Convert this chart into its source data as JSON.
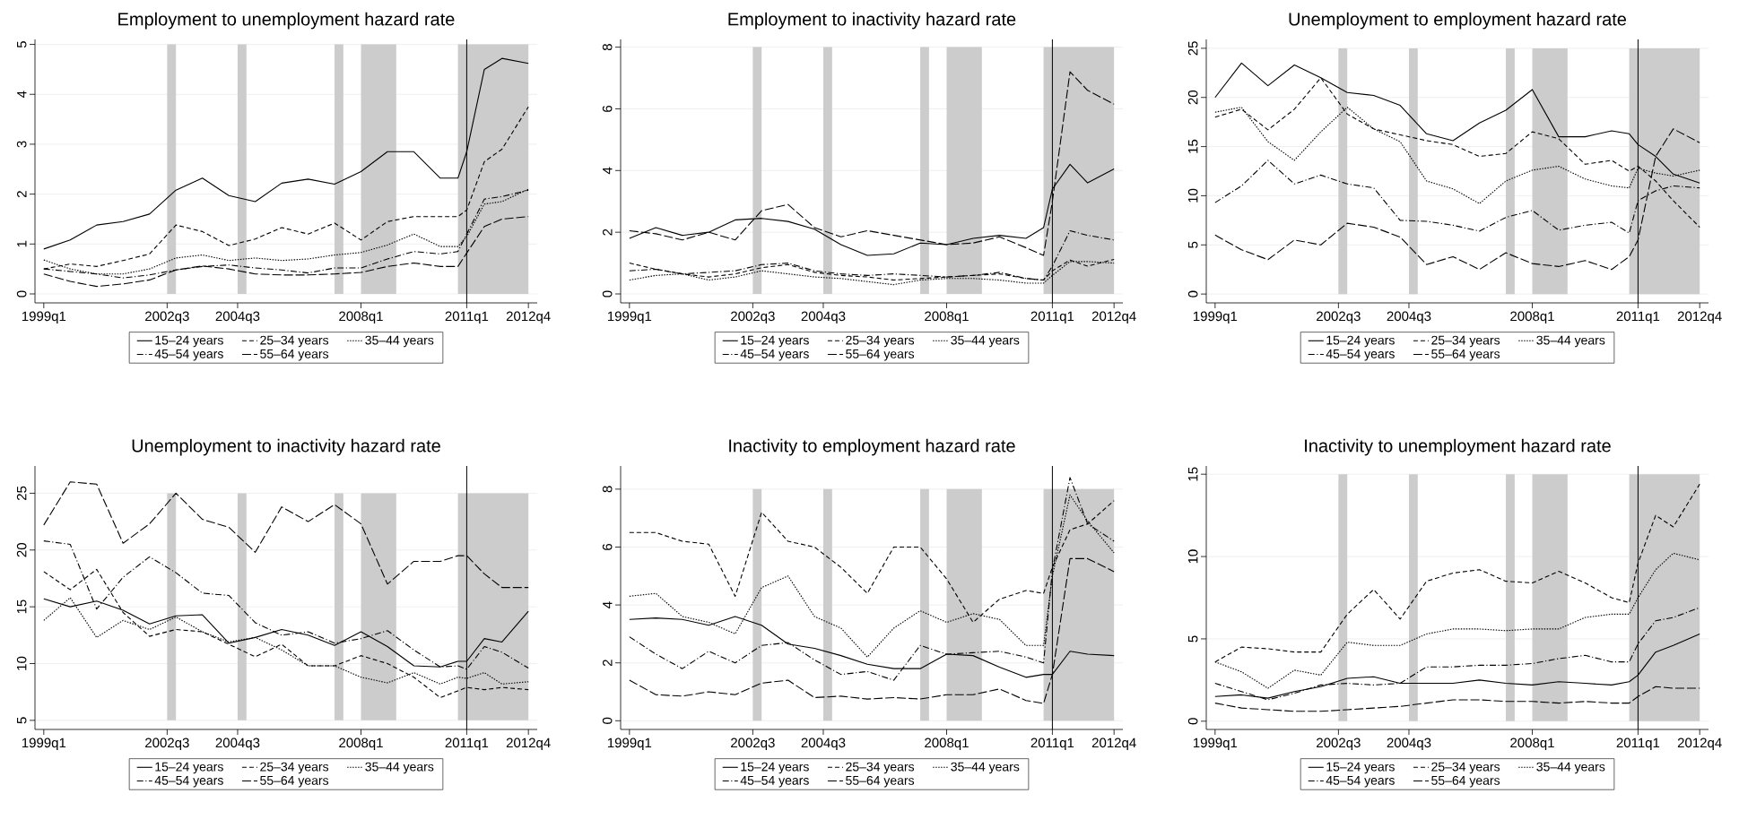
{
  "chart_data": [
    {
      "type": "line",
      "title": "Employment to unemployment hazard rate",
      "x": [
        "1999-01",
        "1999-10",
        "2000-07",
        "2001-04",
        "2002-01",
        "2002-10",
        "2003-07",
        "2004-04",
        "2005-01",
        "2005-10",
        "2006-07",
        "2007-04",
        "2008-01",
        "2008-10",
        "2009-07",
        "2010-04",
        "2010-10",
        "2011-01",
        "2011-07",
        "2012-01",
        "2012-10"
      ],
      "xlim": [
        "1998-10",
        "2013-01"
      ],
      "xticks": [
        {
          "value": "1999-01",
          "label": "1999q1"
        },
        {
          "value": "2002-07",
          "label": "2002q3"
        },
        {
          "value": "2004-07",
          "label": "2004q3"
        },
        {
          "value": "2008-01",
          "label": "2008q1"
        },
        {
          "value": "2011-01",
          "label": "2011q1"
        },
        {
          "value": "2012-10",
          "label": "2012q4"
        }
      ],
      "ylim": [
        -0.18,
        5.1
      ],
      "yticks": [
        0,
        1,
        2,
        3,
        4,
        5
      ],
      "grid": "y",
      "legend": "bottom",
      "bands": [
        {
          "axis": "x",
          "from": "2002-07",
          "to": "2002-10",
          "color": "#cccccc"
        },
        {
          "axis": "x",
          "from": "2004-07",
          "to": "2004-10",
          "color": "#cccccc"
        },
        {
          "axis": "x",
          "from": "2007-04",
          "to": "2007-07",
          "color": "#cccccc"
        },
        {
          "axis": "x",
          "from": "2008-01",
          "to": "2009-01",
          "color": "#cccccc"
        },
        {
          "axis": "x",
          "from": "2010-10",
          "to": "2012-10",
          "color": "#cccccc"
        }
      ],
      "ref_lines": [
        {
          "axis": "x",
          "value": "2011-01",
          "color": "#000000"
        }
      ],
      "series": [
        {
          "name": "15–24 years",
          "color": "#000000",
          "line_style": "solid",
          "values": [
            0.9,
            1.08,
            1.38,
            1.45,
            1.6,
            2.08,
            2.32,
            1.97,
            1.85,
            2.22,
            2.3,
            2.2,
            2.45,
            2.85,
            2.85,
            2.32,
            2.32,
            2.85,
            4.5,
            4.72,
            4.62
          ]
        },
        {
          "name": "25–34 years",
          "color": "#000000",
          "line_style": "dashed",
          "values": [
            0.5,
            0.6,
            0.55,
            0.67,
            0.8,
            1.38,
            1.25,
            0.97,
            1.1,
            1.33,
            1.2,
            1.42,
            1.08,
            1.45,
            1.55,
            1.55,
            1.55,
            1.68,
            2.65,
            2.9,
            3.75
          ]
        },
        {
          "name": "35–44 years",
          "color": "#000000",
          "line_style": "dotted",
          "values": [
            0.68,
            0.5,
            0.4,
            0.4,
            0.5,
            0.72,
            0.78,
            0.67,
            0.72,
            0.67,
            0.7,
            0.78,
            0.83,
            0.98,
            1.2,
            0.95,
            0.95,
            1.15,
            1.8,
            1.85,
            2.1
          ]
        },
        {
          "name": "45–54 years",
          "color": "#000000",
          "line_style": "dashdot",
          "values": [
            0.5,
            0.45,
            0.4,
            0.32,
            0.38,
            0.48,
            0.55,
            0.58,
            0.52,
            0.48,
            0.42,
            0.52,
            0.52,
            0.7,
            0.85,
            0.8,
            0.85,
            1.2,
            1.9,
            1.95,
            2.08
          ]
        },
        {
          "name": "55–64 years",
          "color": "#000000",
          "line_style": "longdash",
          "values": [
            0.4,
            0.25,
            0.15,
            0.2,
            0.28,
            0.48,
            0.56,
            0.5,
            0.4,
            0.38,
            0.38,
            0.4,
            0.43,
            0.55,
            0.62,
            0.55,
            0.55,
            0.82,
            1.35,
            1.5,
            1.55
          ]
        }
      ]
    },
    {
      "type": "line",
      "title": "Employment to inactivity hazard rate",
      "x": [
        "1999-01",
        "1999-10",
        "2000-07",
        "2001-04",
        "2002-01",
        "2002-10",
        "2003-07",
        "2004-04",
        "2005-01",
        "2005-10",
        "2006-07",
        "2007-04",
        "2008-01",
        "2008-10",
        "2009-07",
        "2010-04",
        "2010-10",
        "2011-01",
        "2011-07",
        "2012-01",
        "2012-10"
      ],
      "xlim": [
        "1998-10",
        "2013-01"
      ],
      "xticks": [
        {
          "value": "1999-01",
          "label": "1999q1"
        },
        {
          "value": "2002-07",
          "label": "2002q3"
        },
        {
          "value": "2004-07",
          "label": "2004q3"
        },
        {
          "value": "2008-01",
          "label": "2008q1"
        },
        {
          "value": "2011-01",
          "label": "2011q1"
        },
        {
          "value": "2012-10",
          "label": "2012q4"
        }
      ],
      "ylim": [
        -0.29,
        8.25
      ],
      "yticks": [
        0,
        2,
        4,
        6,
        8
      ],
      "grid": "y",
      "legend": "bottom",
      "bands": [
        {
          "axis": "x",
          "from": "2002-07",
          "to": "2002-10",
          "color": "#cccccc"
        },
        {
          "axis": "x",
          "from": "2004-07",
          "to": "2004-10",
          "color": "#cccccc"
        },
        {
          "axis": "x",
          "from": "2007-04",
          "to": "2007-07",
          "color": "#cccccc"
        },
        {
          "axis": "x",
          "from": "2008-01",
          "to": "2009-01",
          "color": "#cccccc"
        },
        {
          "axis": "x",
          "from": "2010-10",
          "to": "2012-10",
          "color": "#cccccc"
        }
      ],
      "ref_lines": [
        {
          "axis": "x",
          "value": "2011-01",
          "color": "#000000"
        }
      ],
      "series": [
        {
          "name": "15–24 years",
          "color": "#000000",
          "line_style": "solid",
          "values": [
            1.8,
            2.15,
            1.9,
            2.0,
            2.4,
            2.45,
            2.35,
            2.1,
            1.6,
            1.25,
            1.3,
            1.65,
            1.6,
            1.8,
            1.9,
            1.8,
            2.15,
            3.4,
            4.2,
            3.6,
            4.05
          ]
        },
        {
          "name": "25–34 years",
          "color": "#000000",
          "line_style": "dashed",
          "values": [
            1.0,
            0.8,
            0.65,
            0.55,
            0.65,
            0.85,
            0.95,
            0.7,
            0.6,
            0.55,
            0.45,
            0.5,
            0.55,
            0.6,
            0.65,
            0.5,
            0.45,
            0.75,
            1.1,
            0.9,
            1.12
          ]
        },
        {
          "name": "35–44 years",
          "color": "#000000",
          "line_style": "dotted",
          "values": [
            0.45,
            0.6,
            0.65,
            0.45,
            0.55,
            0.75,
            0.65,
            0.55,
            0.5,
            0.4,
            0.3,
            0.45,
            0.5,
            0.5,
            0.45,
            0.35,
            0.35,
            0.6,
            1.05,
            1.05,
            1.0
          ]
        },
        {
          "name": "45–54 years",
          "color": "#000000",
          "line_style": "dashdot",
          "values": [
            0.75,
            0.8,
            0.65,
            0.7,
            0.75,
            0.95,
            1.0,
            0.75,
            0.65,
            0.6,
            0.65,
            0.6,
            0.55,
            0.6,
            0.7,
            0.5,
            0.45,
            0.9,
            2.05,
            1.9,
            1.75
          ]
        },
        {
          "name": "55–64 years",
          "color": "#000000",
          "line_style": "longdash",
          "values": [
            2.05,
            1.95,
            1.75,
            2.0,
            1.75,
            2.7,
            2.9,
            2.15,
            1.85,
            2.05,
            1.9,
            1.75,
            1.6,
            1.65,
            1.85,
            1.5,
            1.25,
            3.0,
            7.2,
            6.6,
            6.15
          ]
        }
      ]
    },
    {
      "type": "line",
      "title": "Unemployment to employment hazard rate",
      "x": [
        "1999-01",
        "1999-10",
        "2000-07",
        "2001-04",
        "2002-01",
        "2002-10",
        "2003-07",
        "2004-04",
        "2005-01",
        "2005-10",
        "2006-07",
        "2007-04",
        "2008-01",
        "2008-10",
        "2009-07",
        "2010-04",
        "2010-10",
        "2011-01",
        "2011-07",
        "2012-01",
        "2012-10"
      ],
      "xlim": [
        "1998-10",
        "2013-01"
      ],
      "xticks": [
        {
          "value": "1999-01",
          "label": "1999q1"
        },
        {
          "value": "2002-07",
          "label": "2002q3"
        },
        {
          "value": "2004-07",
          "label": "2004q3"
        },
        {
          "value": "2008-01",
          "label": "2008q1"
        },
        {
          "value": "2011-01",
          "label": "2011q1"
        },
        {
          "value": "2012-10",
          "label": "2012q4"
        }
      ],
      "ylim": [
        -0.9,
        25.9
      ],
      "yticks": [
        0,
        5,
        10,
        15,
        20,
        25
      ],
      "grid": "y",
      "legend": "bottom",
      "bands": [
        {
          "axis": "x",
          "from": "2002-07",
          "to": "2002-10",
          "color": "#cccccc"
        },
        {
          "axis": "x",
          "from": "2004-07",
          "to": "2004-10",
          "color": "#cccccc"
        },
        {
          "axis": "x",
          "from": "2007-04",
          "to": "2007-07",
          "color": "#cccccc"
        },
        {
          "axis": "x",
          "from": "2008-01",
          "to": "2009-01",
          "color": "#cccccc"
        },
        {
          "axis": "x",
          "from": "2010-10",
          "to": "2012-10",
          "color": "#cccccc"
        }
      ],
      "ref_lines": [
        {
          "axis": "x",
          "value": "2011-01",
          "color": "#000000"
        }
      ],
      "series": [
        {
          "name": "15–24 years",
          "color": "#000000",
          "line_style": "solid",
          "values": [
            20.0,
            23.5,
            21.2,
            23.3,
            22.0,
            20.5,
            20.2,
            19.2,
            16.3,
            15.6,
            17.4,
            18.7,
            20.8,
            16.0,
            16.0,
            16.6,
            16.3,
            15.2,
            14.0,
            12.2,
            11.3
          ]
        },
        {
          "name": "25–34 years",
          "color": "#000000",
          "line_style": "dashed",
          "values": [
            18.0,
            18.8,
            16.7,
            18.8,
            22.0,
            18.3,
            16.8,
            16.2,
            15.6,
            15.2,
            14.0,
            14.3,
            16.5,
            15.8,
            13.2,
            13.6,
            12.5,
            13.0,
            11.5,
            9.5,
            6.8
          ]
        },
        {
          "name": "35–44 years",
          "color": "#000000",
          "line_style": "dotted",
          "values": [
            18.5,
            19.0,
            15.5,
            13.6,
            16.5,
            19.0,
            16.8,
            15.5,
            11.5,
            10.7,
            9.2,
            11.5,
            12.6,
            13.0,
            11.7,
            11.0,
            10.8,
            12.8,
            12.3,
            12.0,
            12.6
          ]
        },
        {
          "name": "45–54 years",
          "color": "#000000",
          "line_style": "dashdot",
          "values": [
            9.3,
            11.0,
            13.6,
            11.2,
            12.1,
            11.2,
            10.8,
            7.5,
            7.4,
            7.0,
            6.4,
            7.8,
            8.5,
            6.5,
            7.0,
            7.3,
            6.2,
            9.5,
            10.5,
            11.0,
            10.8
          ]
        },
        {
          "name": "55–64 years",
          "color": "#000000",
          "line_style": "longdash",
          "values": [
            6.0,
            4.5,
            3.5,
            5.5,
            5.0,
            7.2,
            6.8,
            5.8,
            3.0,
            3.8,
            2.5,
            4.2,
            3.1,
            2.8,
            3.4,
            2.5,
            3.8,
            5.5,
            14.0,
            16.8,
            15.4
          ]
        }
      ]
    },
    {
      "type": "line",
      "title": "Unemployment to inactivity hazard rate",
      "x": [
        "1999-01",
        "1999-10",
        "2000-07",
        "2001-04",
        "2002-01",
        "2002-10",
        "2003-07",
        "2004-04",
        "2005-01",
        "2005-10",
        "2006-07",
        "2007-04",
        "2008-01",
        "2008-10",
        "2009-07",
        "2010-04",
        "2010-10",
        "2011-01",
        "2011-07",
        "2012-01",
        "2012-10"
      ],
      "xlim": [
        "1998-10",
        "2013-01"
      ],
      "xticks": [
        {
          "value": "1999-01",
          "label": "1999q1"
        },
        {
          "value": "2002-07",
          "label": "2002q3"
        },
        {
          "value": "2004-07",
          "label": "2004q3"
        },
        {
          "value": "2008-01",
          "label": "2008q1"
        },
        {
          "value": "2011-01",
          "label": "2011q1"
        },
        {
          "value": "2012-10",
          "label": "2012q4"
        }
      ],
      "ylim": [
        4.2,
        27.4
      ],
      "yticks": [
        5,
        10,
        15,
        20,
        25
      ],
      "grid": "y",
      "legend": "bottom",
      "bands": [
        {
          "axis": "x",
          "from": "2002-07",
          "to": "2002-10",
          "color": "#cccccc"
        },
        {
          "axis": "x",
          "from": "2004-07",
          "to": "2004-10",
          "color": "#cccccc"
        },
        {
          "axis": "x",
          "from": "2007-04",
          "to": "2007-07",
          "color": "#cccccc"
        },
        {
          "axis": "x",
          "from": "2008-01",
          "to": "2009-01",
          "color": "#cccccc"
        },
        {
          "axis": "x",
          "from": "2010-10",
          "to": "2012-10",
          "color": "#cccccc"
        }
      ],
      "ref_lines": [
        {
          "axis": "x",
          "value": "2011-01",
          "color": "#000000"
        }
      ],
      "series": [
        {
          "name": "15–24 years",
          "color": "#000000",
          "line_style": "solid",
          "values": [
            15.7,
            15.0,
            15.5,
            14.7,
            13.5,
            14.2,
            14.3,
            11.8,
            12.3,
            13.0,
            12.5,
            11.6,
            12.8,
            11.5,
            9.8,
            9.7,
            10.2,
            10.2,
            12.2,
            11.9,
            14.6
          ]
        },
        {
          "name": "25–34 years",
          "color": "#000000",
          "line_style": "dashed",
          "values": [
            18.1,
            16.5,
            18.3,
            14.5,
            12.4,
            13.0,
            12.8,
            11.7,
            10.6,
            11.7,
            9.8,
            9.8,
            10.7,
            10.0,
            8.8,
            7.0,
            7.6,
            7.9,
            7.7,
            7.9,
            7.7
          ]
        },
        {
          "name": "35–44 years",
          "color": "#000000",
          "line_style": "dotted",
          "values": [
            13.8,
            15.8,
            12.3,
            13.8,
            13.0,
            14.1,
            12.8,
            11.9,
            12.3,
            11.2,
            9.8,
            9.8,
            8.8,
            8.3,
            9.2,
            8.2,
            8.8,
            8.7,
            9.2,
            8.2,
            8.4
          ]
        },
        {
          "name": "45–54 years",
          "color": "#000000",
          "line_style": "dashdot",
          "values": [
            20.8,
            20.5,
            14.8,
            17.6,
            19.4,
            18.0,
            16.2,
            16.0,
            13.6,
            12.5,
            12.8,
            11.8,
            12.2,
            12.9,
            11.2,
            9.7,
            9.8,
            9.5,
            11.5,
            11.0,
            9.6
          ]
        },
        {
          "name": "55–64 years",
          "color": "#000000",
          "line_style": "longdash",
          "values": [
            22.2,
            26.0,
            25.8,
            20.6,
            22.3,
            25.0,
            22.7,
            22.0,
            19.8,
            23.8,
            22.5,
            24.0,
            22.3,
            17.0,
            19.0,
            19.0,
            19.5,
            19.5,
            17.9,
            16.7,
            16.7
          ]
        }
      ]
    },
    {
      "type": "line",
      "title": "Inactivity to employment hazard rate",
      "x": [
        "1999-01",
        "1999-10",
        "2000-07",
        "2001-04",
        "2002-01",
        "2002-10",
        "2003-07",
        "2004-04",
        "2005-01",
        "2005-10",
        "2006-07",
        "2007-04",
        "2008-01",
        "2008-10",
        "2009-07",
        "2010-04",
        "2010-10",
        "2011-01",
        "2011-07",
        "2012-01",
        "2012-10"
      ],
      "xlim": [
        "1998-10",
        "2013-01"
      ],
      "xticks": [
        {
          "value": "1999-01",
          "label": "1999q1"
        },
        {
          "value": "2002-07",
          "label": "2002q3"
        },
        {
          "value": "2004-07",
          "label": "2004q3"
        },
        {
          "value": "2008-01",
          "label": "2008q1"
        },
        {
          "value": "2011-01",
          "label": "2011q1"
        },
        {
          "value": "2012-10",
          "label": "2012q4"
        }
      ],
      "ylim": [
        -0.3,
        8.8
      ],
      "yticks": [
        0,
        2,
        4,
        6,
        8
      ],
      "grid": "y",
      "legend": "bottom",
      "bands": [
        {
          "axis": "x",
          "from": "2002-07",
          "to": "2002-10",
          "color": "#cccccc"
        },
        {
          "axis": "x",
          "from": "2004-07",
          "to": "2004-10",
          "color": "#cccccc"
        },
        {
          "axis": "x",
          "from": "2007-04",
          "to": "2007-07",
          "color": "#cccccc"
        },
        {
          "axis": "x",
          "from": "2008-01",
          "to": "2009-01",
          "color": "#cccccc"
        },
        {
          "axis": "x",
          "from": "2010-10",
          "to": "2012-10",
          "color": "#cccccc"
        }
      ],
      "ref_lines": [
        {
          "axis": "x",
          "value": "2011-01",
          "color": "#000000"
        }
      ],
      "series": [
        {
          "name": "15–24 years",
          "color": "#000000",
          "line_style": "solid",
          "values": [
            3.5,
            3.55,
            3.5,
            3.3,
            3.6,
            3.3,
            2.65,
            2.5,
            2.25,
            1.95,
            1.8,
            1.8,
            2.3,
            2.25,
            1.85,
            1.5,
            1.6,
            1.6,
            2.4,
            2.3,
            2.25
          ]
        },
        {
          "name": "25–34 years",
          "color": "#000000",
          "line_style": "dashed",
          "values": [
            6.5,
            6.5,
            6.2,
            6.1,
            4.3,
            7.2,
            6.2,
            6.0,
            5.3,
            4.4,
            6.0,
            6.0,
            4.9,
            3.4,
            4.2,
            4.5,
            4.4,
            5.3,
            6.6,
            6.8,
            7.6
          ]
        },
        {
          "name": "35–44 years",
          "color": "#000000",
          "line_style": "dotted",
          "values": [
            4.3,
            4.4,
            3.6,
            3.4,
            3.0,
            4.6,
            5.0,
            3.6,
            3.2,
            2.2,
            3.2,
            3.8,
            3.4,
            3.7,
            3.5,
            2.6,
            2.6,
            5.0,
            7.8,
            6.9,
            5.8
          ]
        },
        {
          "name": "45–54 years",
          "color": "#000000",
          "line_style": "dashdot",
          "values": [
            2.9,
            2.3,
            1.8,
            2.4,
            2.0,
            2.6,
            2.7,
            2.1,
            1.6,
            1.7,
            1.4,
            2.6,
            2.3,
            2.35,
            2.4,
            2.2,
            2.0,
            5.2,
            8.4,
            6.8,
            6.2
          ]
        },
        {
          "name": "55–64 years",
          "color": "#000000",
          "line_style": "longdash",
          "values": [
            1.4,
            0.9,
            0.85,
            1.0,
            0.9,
            1.3,
            1.4,
            0.8,
            0.85,
            0.75,
            0.8,
            0.75,
            0.9,
            0.9,
            1.1,
            0.7,
            0.6,
            1.6,
            5.6,
            5.6,
            5.15
          ]
        }
      ]
    },
    {
      "type": "line",
      "title": "Inactivity to unemployment hazard rate",
      "x": [
        "1999-01",
        "1999-10",
        "2000-07",
        "2001-04",
        "2002-01",
        "2002-10",
        "2003-07",
        "2004-04",
        "2005-01",
        "2005-10",
        "2006-07",
        "2007-04",
        "2008-01",
        "2008-10",
        "2009-07",
        "2010-04",
        "2010-10",
        "2011-01",
        "2011-07",
        "2012-01",
        "2012-10"
      ],
      "xlim": [
        "1998-10",
        "2013-01"
      ],
      "xticks": [
        {
          "value": "1999-01",
          "label": "1999q1"
        },
        {
          "value": "2002-07",
          "label": "2002q3"
        },
        {
          "value": "2004-07",
          "label": "2004q3"
        },
        {
          "value": "2008-01",
          "label": "2008q1"
        },
        {
          "value": "2011-01",
          "label": "2011q1"
        },
        {
          "value": "2012-10",
          "label": "2012q4"
        }
      ],
      "ylim": [
        -0.5,
        15.5
      ],
      "yticks": [
        0,
        5,
        10,
        15
      ],
      "grid": "y",
      "legend": "bottom",
      "bands": [
        {
          "axis": "x",
          "from": "2002-07",
          "to": "2002-10",
          "color": "#cccccc"
        },
        {
          "axis": "x",
          "from": "2004-07",
          "to": "2004-10",
          "color": "#cccccc"
        },
        {
          "axis": "x",
          "from": "2007-04",
          "to": "2007-07",
          "color": "#cccccc"
        },
        {
          "axis": "x",
          "from": "2008-01",
          "to": "2009-01",
          "color": "#cccccc"
        },
        {
          "axis": "x",
          "from": "2010-10",
          "to": "2012-10",
          "color": "#cccccc"
        }
      ],
      "ref_lines": [
        {
          "axis": "x",
          "value": "2011-01",
          "color": "#000000"
        }
      ],
      "series": [
        {
          "name": "15–24 years",
          "color": "#000000",
          "line_style": "solid",
          "values": [
            1.5,
            1.6,
            1.4,
            1.8,
            2.1,
            2.6,
            2.7,
            2.3,
            2.3,
            2.3,
            2.5,
            2.3,
            2.2,
            2.4,
            2.3,
            2.2,
            2.4,
            2.8,
            4.2,
            4.6,
            5.3
          ]
        },
        {
          "name": "25–34 years",
          "color": "#000000",
          "line_style": "dashed",
          "values": [
            3.6,
            4.5,
            4.4,
            4.2,
            4.2,
            6.5,
            8.0,
            6.2,
            8.5,
            9.0,
            9.2,
            8.5,
            8.4,
            9.1,
            8.4,
            7.5,
            7.2,
            9.6,
            12.5,
            11.8,
            14.4
          ]
        },
        {
          "name": "35–44 years",
          "color": "#000000",
          "line_style": "dotted",
          "values": [
            3.6,
            3.0,
            2.0,
            3.1,
            2.8,
            4.8,
            4.6,
            4.6,
            5.3,
            5.6,
            5.6,
            5.5,
            5.6,
            5.6,
            6.3,
            6.5,
            6.5,
            7.5,
            9.2,
            10.2,
            9.8
          ]
        },
        {
          "name": "45–54 years",
          "color": "#000000",
          "line_style": "dashdot",
          "values": [
            2.3,
            1.8,
            1.3,
            1.7,
            2.2,
            2.3,
            2.2,
            2.3,
            3.3,
            3.3,
            3.4,
            3.4,
            3.5,
            3.8,
            4.0,
            3.6,
            3.6,
            4.7,
            6.1,
            6.3,
            6.9
          ]
        },
        {
          "name": "55–64 years",
          "color": "#000000",
          "line_style": "longdash",
          "values": [
            1.1,
            0.8,
            0.7,
            0.6,
            0.6,
            0.7,
            0.8,
            0.9,
            1.1,
            1.3,
            1.3,
            1.2,
            1.2,
            1.1,
            1.2,
            1.1,
            1.1,
            1.5,
            2.1,
            2.0,
            2.0
          ]
        }
      ]
    }
  ]
}
